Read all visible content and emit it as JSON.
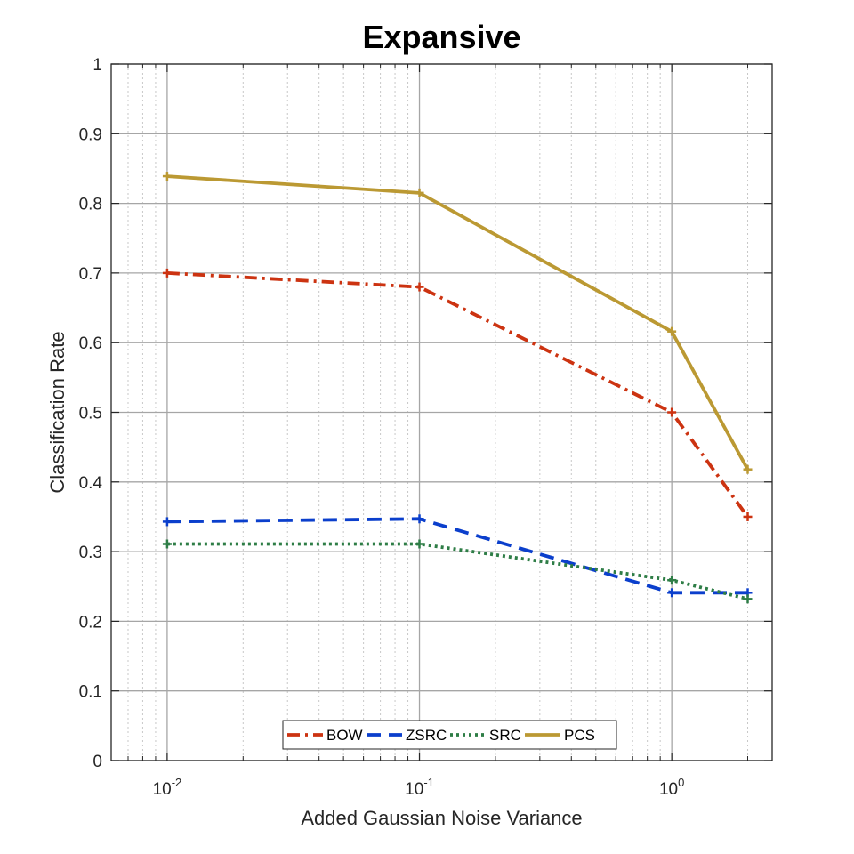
{
  "chart_data": {
    "type": "line",
    "title": "Expansive",
    "xlabel": "Added Gaussian Noise Variance",
    "ylabel": "Classification Rate",
    "xscale": "log",
    "xlim": [
      0.006,
      2.5
    ],
    "ylim": [
      0,
      1
    ],
    "x": [
      0.01,
      0.1,
      1,
      2
    ],
    "xticks": [
      {
        "value": 0.01,
        "base": "10",
        "exp": "-2"
      },
      {
        "value": 0.1,
        "base": "10",
        "exp": "-1"
      },
      {
        "value": 1,
        "base": "10",
        "exp": "0"
      }
    ],
    "yticks": [
      {
        "value": 0,
        "label": "0"
      },
      {
        "value": 0.1,
        "label": "0.1"
      },
      {
        "value": 0.2,
        "label": "0.2"
      },
      {
        "value": 0.3,
        "label": "0.3"
      },
      {
        "value": 0.4,
        "label": "0.4"
      },
      {
        "value": 0.5,
        "label": "0.5"
      },
      {
        "value": 0.6,
        "label": "0.6"
      },
      {
        "value": 0.7,
        "label": "0.7"
      },
      {
        "value": 0.8,
        "label": "0.8"
      },
      {
        "value": 0.9,
        "label": "0.9"
      },
      {
        "value": 1,
        "label": "1"
      }
    ],
    "grid": true,
    "minor_grid": true,
    "legend_position": "bottom-center",
    "series": [
      {
        "name": "BOW",
        "values": [
          0.7,
          0.68,
          0.5,
          0.35
        ],
        "color": "#cc3311",
        "style": "dashdot"
      },
      {
        "name": "ZSRC",
        "values": [
          0.343,
          0.347,
          0.241,
          0.241
        ],
        "color": "#0b3fcc",
        "style": "dashed"
      },
      {
        "name": "SRC",
        "values": [
          0.311,
          0.311,
          0.259,
          0.232
        ],
        "color": "#2e7d46",
        "style": "dotted"
      },
      {
        "name": "PCS",
        "values": [
          0.839,
          0.815,
          0.616,
          0.418
        ],
        "color": "#bb9933",
        "style": "solid"
      }
    ]
  }
}
